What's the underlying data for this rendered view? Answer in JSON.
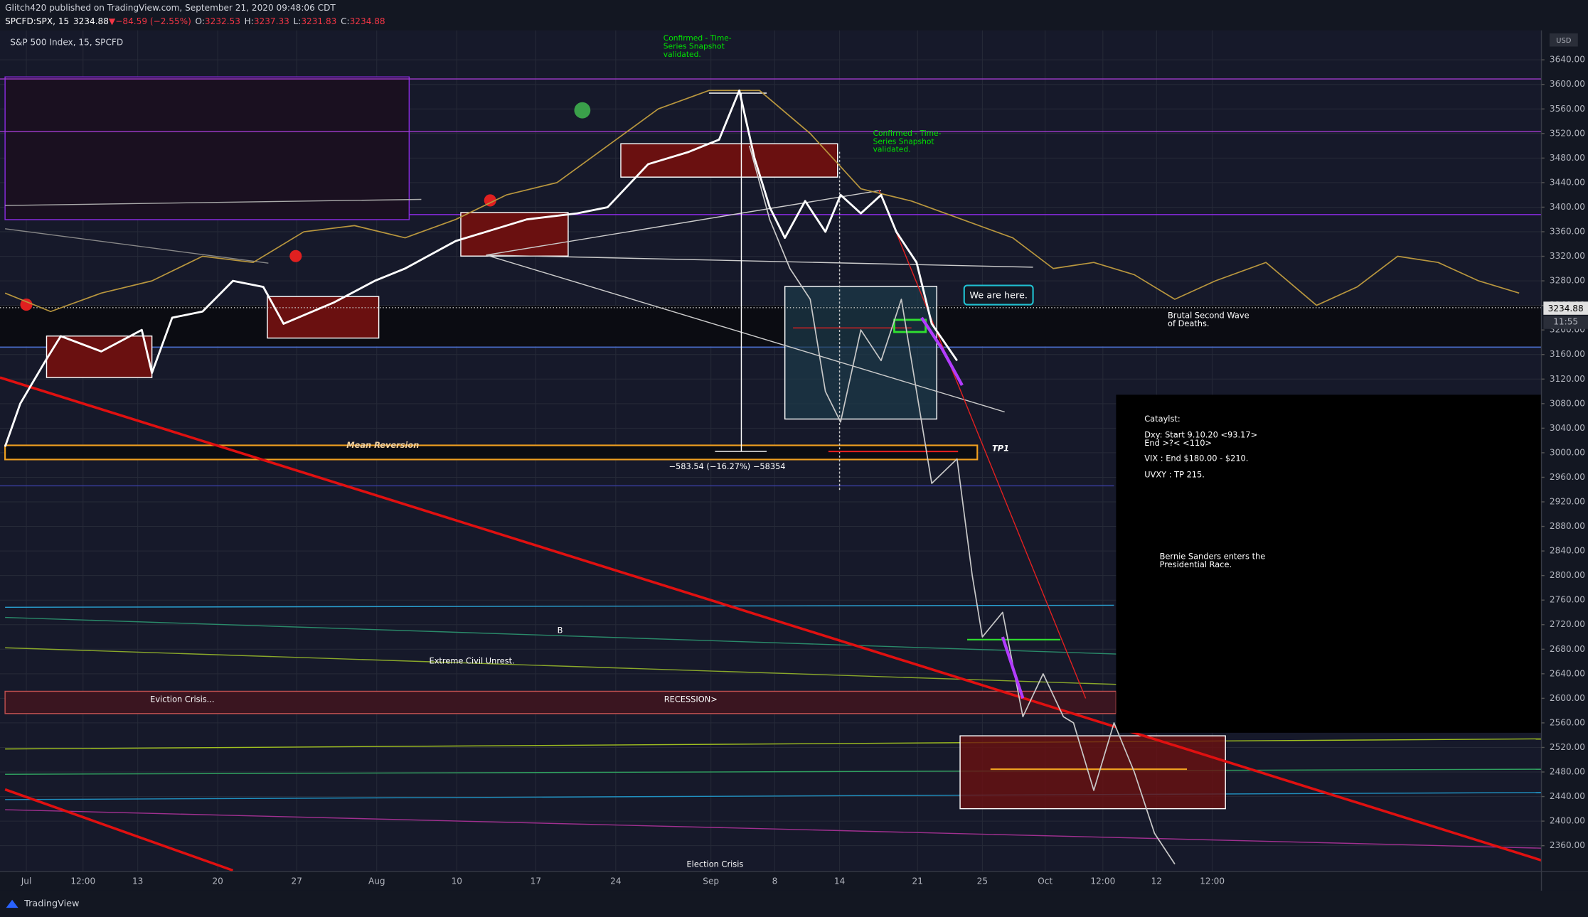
{
  "header": {
    "publisher": "Glitch420 published on TradingView.com, September 21, 2020 09:48:06 CDT",
    "quote": [
      "SPCFD:SPX, 15",
      "3234.88",
      "▼",
      "−84.59 (−2.55%)",
      "O:",
      "3232.53",
      "H:",
      "3237.33",
      "L:",
      "3231.83",
      "C:",
      "3234.88"
    ],
    "symbol": "S&P 500 Index, 15, SPCFD",
    "currency": "USD",
    "brand": "TradingView"
  },
  "chart_data": {
    "type": "line",
    "xlim": [
      0,
      1522
    ],
    "ylim": [
      2318,
      3688
    ],
    "xticks": [
      {
        "value": 26,
        "label": "Jul"
      },
      {
        "value": 82,
        "label": "12:00"
      },
      {
        "value": 136,
        "label": "13"
      },
      {
        "value": 215,
        "label": "20"
      },
      {
        "value": 293,
        "label": "27"
      },
      {
        "value": 372,
        "label": "Aug"
      },
      {
        "value": 451,
        "label": "10"
      },
      {
        "value": 529,
        "label": "17"
      },
      {
        "value": 608,
        "label": "24"
      },
      {
        "value": 702,
        "label": "Sep"
      },
      {
        "value": 765,
        "label": "8"
      },
      {
        "value": 829,
        "label": "14"
      },
      {
        "value": 906,
        "label": "21"
      },
      {
        "value": 970,
        "label": "25"
      },
      {
        "value": 1032,
        "label": "Oct"
      },
      {
        "value": 1089,
        "label": "12:00"
      },
      {
        "value": 1142,
        "label": "12"
      },
      {
        "value": 1197,
        "label": "12:00"
      }
    ],
    "yticks": [
      {
        "value": 2360,
        "label": "2360.00"
      },
      {
        "value": 2400,
        "label": "2400.00"
      },
      {
        "value": 2440,
        "label": "2440.00"
      },
      {
        "value": 2480,
        "label": "2480.00"
      },
      {
        "value": 2520,
        "label": "2520.00"
      },
      {
        "value": 2560,
        "label": "2560.00"
      },
      {
        "value": 2600,
        "label": "2600.00"
      },
      {
        "value": 2640,
        "label": "2640.00"
      },
      {
        "value": 2680,
        "label": "2680.00"
      },
      {
        "value": 2720,
        "label": "2720.00"
      },
      {
        "value": 2760,
        "label": "2760.00"
      },
      {
        "value": 2800,
        "label": "2800.00"
      },
      {
        "value": 2840,
        "label": "2840.00"
      },
      {
        "value": 2880,
        "label": "2880.00"
      },
      {
        "value": 2920,
        "label": "2920.00"
      },
      {
        "value": 2960,
        "label": "2960.00"
      },
      {
        "value": 3000,
        "label": "3000.00"
      },
      {
        "value": 3040,
        "label": "3040.00"
      },
      {
        "value": 3080,
        "label": "3080.00"
      },
      {
        "value": 3120,
        "label": "3120.00"
      },
      {
        "value": 3160,
        "label": "3160.00"
      },
      {
        "value": 3200,
        "label": "3200.00"
      },
      {
        "value": 3240,
        "label": "3240.00"
      },
      {
        "value": 3280,
        "label": "3280.00"
      },
      {
        "value": 3320,
        "label": "3320.00"
      },
      {
        "value": 3360,
        "label": "3360.00"
      },
      {
        "value": 3400,
        "label": "3400.00"
      },
      {
        "value": 3440,
        "label": "3440.00"
      },
      {
        "value": 3480,
        "label": "3480.00"
      },
      {
        "value": 3520,
        "label": "3520.00"
      },
      {
        "value": 3560,
        "label": "3560.00"
      },
      {
        "value": 3600,
        "label": "3600.00"
      },
      {
        "value": 3640,
        "label": "3640.00"
      }
    ],
    "grid": true,
    "last_price": {
      "value": 3234.88,
      "label": "3234.88"
    },
    "last_time": "11:55",
    "series": [
      {
        "color": "#b8963e",
        "x": [
          5,
          50,
          100,
          150,
          200,
          250,
          300,
          350,
          400,
          450,
          500,
          550,
          600,
          650,
          700,
          750,
          800,
          850,
          900,
          950,
          1000,
          1040,
          1080,
          1120,
          1160,
          1200,
          1250,
          1300,
          1340,
          1380,
          1420,
          1460,
          1500
        ],
        "values": [
          3260,
          3230,
          3260,
          3280,
          3320,
          3310,
          3360,
          3370,
          3350,
          3380,
          3420,
          3440,
          3500,
          3560,
          3590,
          3590,
          3520,
          3430,
          3410,
          3380,
          3350,
          3300,
          3310,
          3290,
          3250,
          3280,
          3310,
          3240,
          3270,
          3320,
          3310,
          3280,
          3260
        ]
      },
      {
        "color": "#c8c8c8",
        "x": [
          740,
          760,
          780,
          800,
          815,
          830,
          850,
          870,
          890,
          905,
          920,
          945,
          960,
          970,
          990,
          1010,
          1030,
          1050,
          1060,
          1080,
          1100,
          1120,
          1140,
          1160
        ],
        "values": [
          3500,
          3380,
          3300,
          3250,
          3100,
          3050,
          3200,
          3150,
          3250,
          3100,
          2950,
          2990,
          2800,
          2700,
          2740,
          2570,
          2640,
          2570,
          2560,
          2450,
          2560,
          2480,
          2380,
          2330
        ]
      },
      {
        "color": "#ffffff",
        "x": [
          5,
          20,
          45,
          60,
          100,
          140,
          150,
          170,
          200,
          230,
          260,
          280,
          330,
          370,
          400,
          450,
          480,
          520,
          570,
          600,
          640,
          680,
          710,
          730,
          745,
          760,
          775,
          795,
          815,
          830,
          850,
          870,
          885,
          905,
          920,
          945
        ],
        "values": [
          3010,
          3080,
          3150,
          3190,
          3165,
          3200,
          3130,
          3220,
          3230,
          3280,
          3270,
          3210,
          3245,
          3280,
          3300,
          3345,
          3360,
          3380,
          3390,
          3400,
          3470,
          3490,
          3510,
          3590,
          3480,
          3400,
          3350,
          3410,
          3360,
          3420,
          3390,
          3420,
          3360,
          3310,
          3210,
          3150
        ]
      },
      {
        "color": "#b23cff",
        "x": [
          910,
          930,
          950,
          970,
          990,
          1010
        ],
        "values": [
          3220,
          3170,
          3110,
          null,
          2700,
          2600
        ]
      }
    ],
    "annotations": [
      "Confirmed - Time-",
      "Series Snapshot",
      "validated.",
      "Confirmed - Time-",
      "Series Snapshot",
      "validated.",
      "We are here.",
      "Brutal Second Wave",
      "of Deaths.",
      "Mean Reversion",
      "TP1",
      "−583.54 (−16.27%) −58354",
      "B",
      "Extreme Civil Unrest.",
      "Eviction Crisis...",
      "RECESSION>",
      "Election Crisis"
    ],
    "note_box": [
      "Cataylst:",
      "Dxy: Start 9.10.20 <93.17>",
      "End >?< <110>",
      "VIX : End $180.00 - $210.",
      "UVXY : TP 215.",
      "Bernie Sanders enters the",
      "Presidential Race."
    ]
  }
}
